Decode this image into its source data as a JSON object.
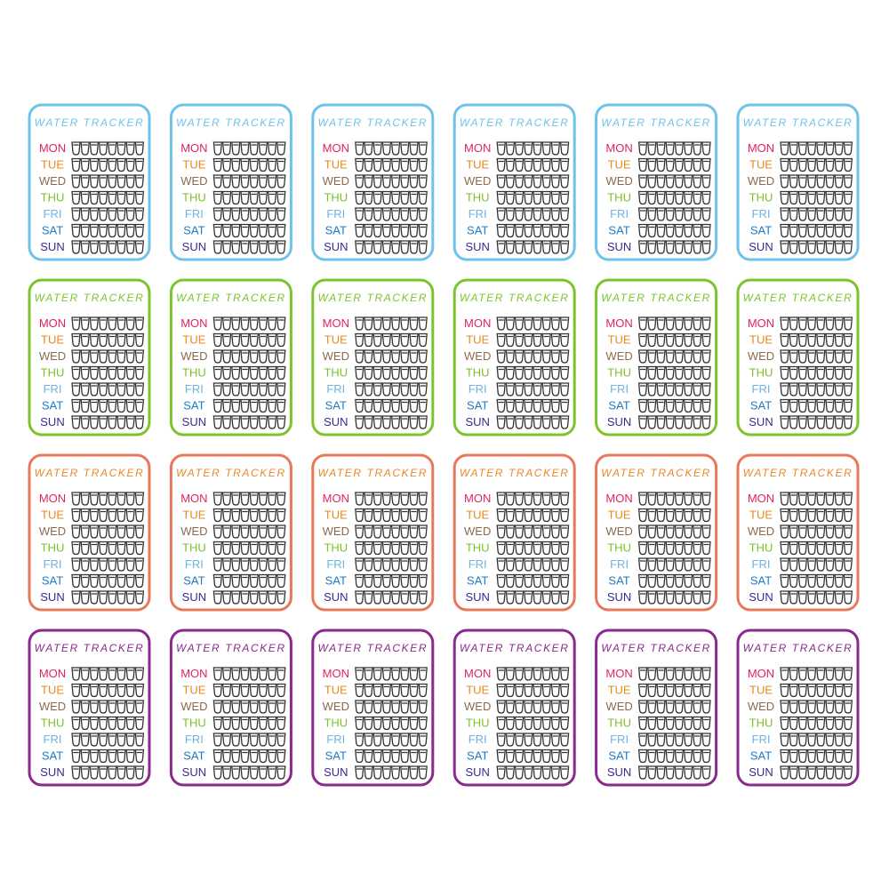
{
  "sticker": {
    "title": "WATER TRACKER",
    "cups_per_day": 8,
    "days": [
      {
        "label": "MON",
        "color": "#e0245e"
      },
      {
        "label": "TUE",
        "color": "#e8891e"
      },
      {
        "label": "WED",
        "color": "#8b6a4e"
      },
      {
        "label": "THU",
        "color": "#7cc02a"
      },
      {
        "label": "FRI",
        "color": "#6fb3e0"
      },
      {
        "label": "SAT",
        "color": "#1e7bc4"
      },
      {
        "label": "SUN",
        "color": "#3a2a8a"
      }
    ]
  },
  "columns": 6,
  "rows": [
    {
      "border": "#6ec3e8",
      "title_color": "#6ec3e8"
    },
    {
      "border": "#7cc42e",
      "title_color": "#7cc42e"
    },
    {
      "border": "#e8785a",
      "title_color": "#e8892a"
    },
    {
      "border": "#8a2a8e",
      "title_color": "#8a2a8e"
    }
  ]
}
